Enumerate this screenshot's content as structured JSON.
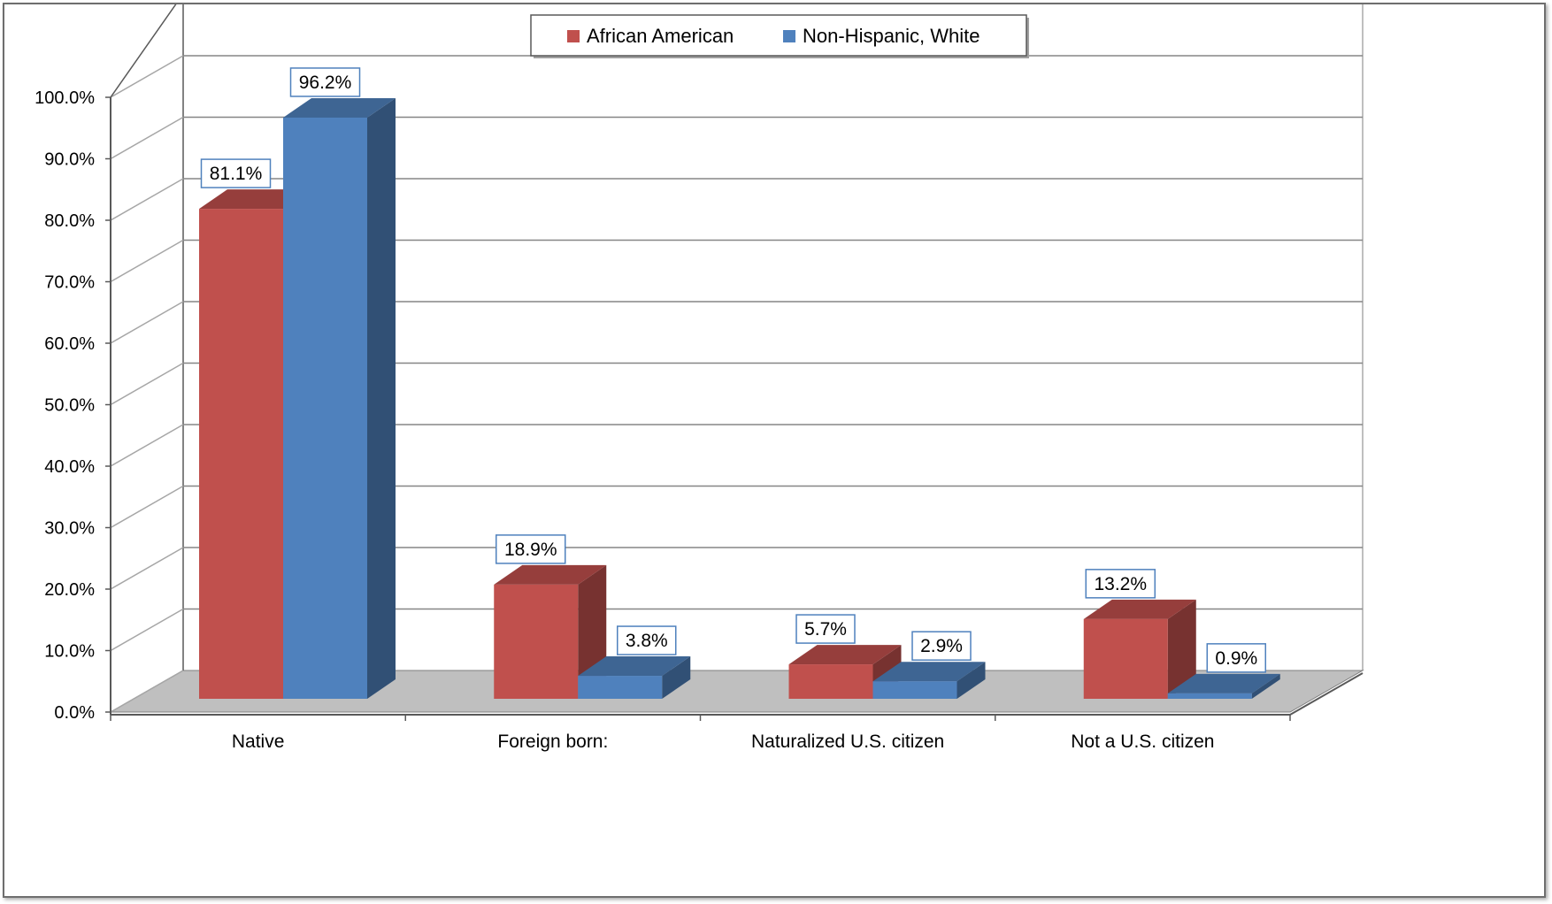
{
  "chart_data": {
    "type": "bar",
    "categories": [
      "Native",
      "Foreign born:",
      "Naturalized U.S. citizen",
      "Not a U.S. citizen"
    ],
    "series": [
      {
        "name": "African American",
        "values": [
          81.1,
          18.9,
          5.7,
          13.2
        ],
        "labels": [
          "81.1%",
          "18.9%",
          "5.7%",
          "13.2%"
        ],
        "color": "#c0504d"
      },
      {
        "name": "Non-Hispanic, White",
        "values": [
          96.2,
          3.8,
          2.9,
          0.9
        ],
        "labels": [
          "96.2%",
          "3.8%",
          "2.9%",
          "0.9%"
        ],
        "color": "#4f81bd"
      }
    ],
    "yticks": [
      "0.0%",
      "10.0%",
      "20.0%",
      "30.0%",
      "40.0%",
      "50.0%",
      "60.0%",
      "70.0%",
      "80.0%",
      "90.0%",
      "100.0%"
    ],
    "ylim": [
      0,
      100
    ],
    "grid": true,
    "legend_position": "top-center",
    "style": "3d-clustered-column"
  }
}
